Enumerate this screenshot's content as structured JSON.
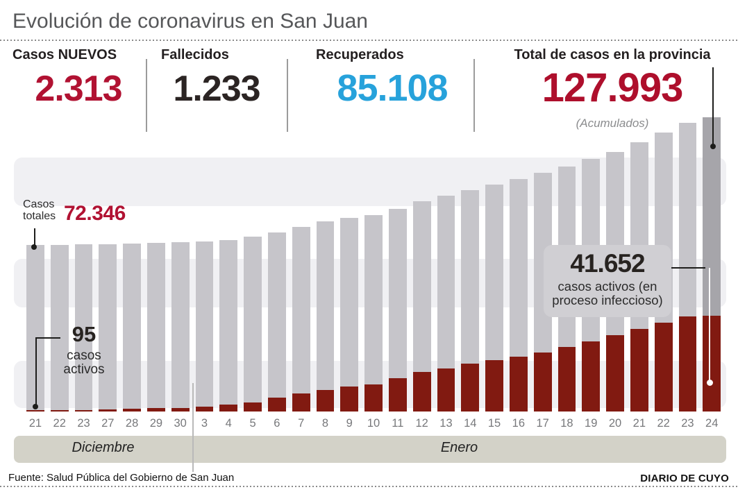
{
  "title": "Evolución de coronavirus en San Juan",
  "stats": [
    {
      "label": "Casos NUEVOS",
      "value": "2.313",
      "color": "#b11232"
    },
    {
      "label": "Fallecidos",
      "value": "1.233",
      "color": "#2b2423"
    },
    {
      "label": "Recuperados",
      "value": "85.108",
      "color": "#27a2db"
    },
    {
      "label": "Total de casos en la provincia",
      "value": "127.993",
      "note": "(Acumulados)",
      "color": "#ae0f2c"
    }
  ],
  "chart_data": {
    "type": "bar",
    "title": "Evolución de coronavirus en San Juan",
    "categories": [
      "21",
      "22",
      "23",
      "27",
      "28",
      "29",
      "30",
      "3",
      "4",
      "5",
      "6",
      "7",
      "8",
      "9",
      "10",
      "11",
      "12",
      "13",
      "14",
      "15",
      "16",
      "17",
      "18",
      "19",
      "20",
      "21",
      "22",
      "23",
      "24"
    ],
    "months": [
      {
        "label": "Diciembre",
        "days": 7
      },
      {
        "label": "Enero",
        "days": 22
      }
    ],
    "series": [
      {
        "name": "Casos totales (acumulados)",
        "color": "#c6c5ca",
        "highlight_last_color": "#a6a5aa",
        "values": [
          72346,
          72500,
          72650,
          72850,
          73050,
          73300,
          73700,
          74000,
          74700,
          76000,
          77900,
          80300,
          82600,
          84100,
          85500,
          88200,
          91600,
          93800,
          96200,
          98700,
          101100,
          103800,
          106500,
          109900,
          112900,
          117100,
          121400,
          125500,
          127993
        ]
      },
      {
        "name": "Casos activos (en proceso infeccioso)",
        "color": "#811a11",
        "values": [
          95,
          150,
          250,
          900,
          1100,
          1400,
          1600,
          2100,
          2900,
          3900,
          5900,
          7900,
          9500,
          10900,
          11900,
          14500,
          17200,
          18800,
          20800,
          22300,
          23800,
          25800,
          28100,
          30600,
          33100,
          35900,
          38600,
          41300,
          41652
        ]
      }
    ],
    "ylim": [
      0,
      127993
    ],
    "grid": "horizontal-bands",
    "legend": "none"
  },
  "annotations": {
    "first_total": {
      "label_line1": "Casos",
      "label_line2": "totales",
      "value": "72.346"
    },
    "first_active": {
      "value": "95",
      "label_line1": "casos",
      "label_line2": "activos"
    },
    "last_active": {
      "value": "41.652",
      "label_line1": "casos activos (en",
      "label_line2": "proceso infeccioso)"
    }
  },
  "footer": {
    "source": "Fuente: Salud Pública del Gobierno de San Juan",
    "credit": "DIARIO DE CUYO"
  }
}
